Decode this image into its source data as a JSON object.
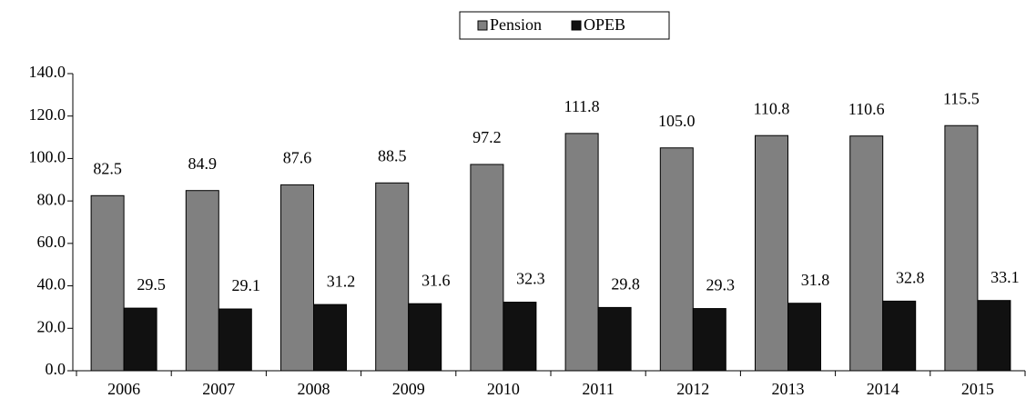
{
  "chart_data": {
    "type": "bar",
    "categories": [
      "2006",
      "2007",
      "2008",
      "2009",
      "2010",
      "2011",
      "2012",
      "2013",
      "2014",
      "2015"
    ],
    "series": [
      {
        "name": "Pension",
        "color": "#808080",
        "values": [
          82.5,
          84.9,
          87.6,
          88.5,
          97.2,
          111.8,
          105,
          110.8,
          110.6,
          115.5
        ],
        "value_labels": [
          "82.5",
          "84.9",
          "87.6",
          "88.5",
          "97.2",
          "111.8",
          "105.0",
          "110.8",
          "110.6",
          "115.5"
        ]
      },
      {
        "name": "OPEB",
        "color": "#111111",
        "values": [
          29.5,
          29.1,
          31.2,
          31.6,
          32.3,
          29.8,
          29.3,
          31.8,
          32.8,
          33.1
        ],
        "value_labels": [
          "29.5",
          "29.1",
          "31.2",
          "31.6",
          "32.3",
          "29.8",
          "29.3",
          "31.8",
          "32.8",
          "33.1"
        ]
      }
    ],
    "ylim": [
      0,
      140
    ],
    "yticks": [
      {
        "value": 0,
        "label": "0.0"
      },
      {
        "value": 20,
        "label": "20.0"
      },
      {
        "value": 40,
        "label": "40.0"
      },
      {
        "value": 60,
        "label": "60.0"
      },
      {
        "value": 80,
        "label": "80.0"
      },
      {
        "value": 100,
        "label": "100.0"
      },
      {
        "value": 120,
        "label": "120.0"
      },
      {
        "value": 140,
        "label": "140.0"
      }
    ],
    "legend": "top"
  }
}
